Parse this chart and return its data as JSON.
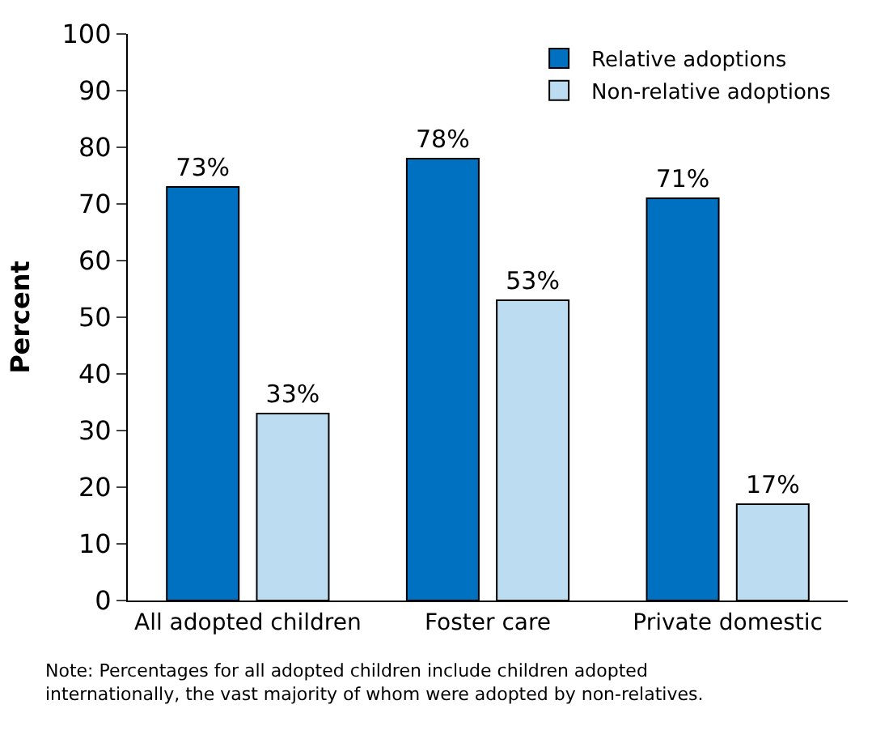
{
  "chart_data": {
    "type": "bar",
    "ylabel": "Percent",
    "categories": [
      "All adopted children",
      "Foster care",
      "Private domestic"
    ],
    "series": [
      {
        "name": "Relative adoptions",
        "color": "#0070c0",
        "values": [
          73,
          78,
          71
        ],
        "value_labels": [
          "73%",
          "78%",
          "71%"
        ]
      },
      {
        "name": "Non-relative adoptions",
        "color": "#bcdcf2",
        "values": [
          33,
          53,
          17
        ],
        "value_labels": [
          "33%",
          "53%",
          "17%"
        ]
      }
    ],
    "ylim": [
      0,
      100
    ],
    "yticks": [
      0,
      10,
      20,
      30,
      40,
      50,
      60,
      70,
      80,
      90,
      100
    ],
    "legend": "top right",
    "annotations": [
      "Note: Percentages for all adopted children include children adopted internationally, the vast majority of whom were adopted by non-relatives."
    ]
  }
}
